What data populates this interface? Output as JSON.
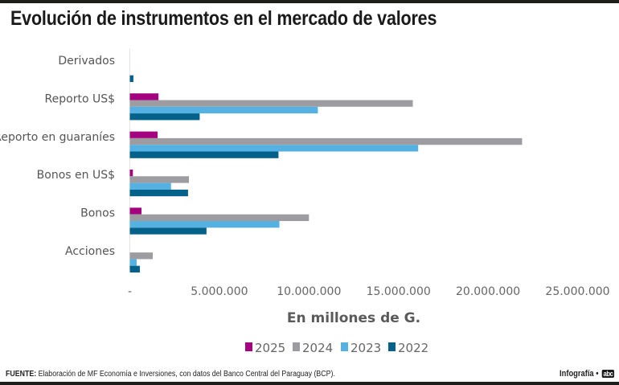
{
  "header": {
    "title": "Evolución de instrumentos en el mercado de valores"
  },
  "footer": {
    "source_label": "FUENTE:",
    "source_text": " Elaboración de MF Economía e Inversiones, con datos del Banco Central del Paraguay (BCP).",
    "credit_text": "Infografía •",
    "logo_text": "abc"
  },
  "chart_data": {
    "type": "bar",
    "orientation": "horizontal",
    "title": "Evolución de instrumentos en el mercado de valores",
    "xlabel": "En millones de G.",
    "ylabel": "",
    "xlim": [
      0,
      25000000
    ],
    "x_ticks": [
      0,
      5000000,
      10000000,
      15000000,
      20000000,
      25000000
    ],
    "x_tick_labels": [
      "-",
      "5.000.000",
      "10.000.000",
      "15.000.000",
      "20.000.000",
      "25.000.000"
    ],
    "grid": false,
    "legend_position": "bottom-center",
    "categories": [
      "Derivados",
      "Reporto US$",
      "Reporto en guaraníes",
      "Bonos en US$",
      "Bonos",
      "Acciones"
    ],
    "series": [
      {
        "name": "2025",
        "color": "#a3037f",
        "values": [
          0,
          1600000,
          1550000,
          170000,
          650000,
          0
        ]
      },
      {
        "name": "2024",
        "color": "#9d9ca1",
        "values": [
          0,
          15800000,
          21900000,
          3300000,
          10000000,
          1280000
        ]
      },
      {
        "name": "2023",
        "color": "#55b1e2",
        "values": [
          0,
          10500000,
          16100000,
          2300000,
          8350000,
          380000
        ]
      },
      {
        "name": "2022",
        "color": "#03618a",
        "values": [
          200000,
          3900000,
          8300000,
          3250000,
          4280000,
          560000
        ]
      }
    ]
  }
}
